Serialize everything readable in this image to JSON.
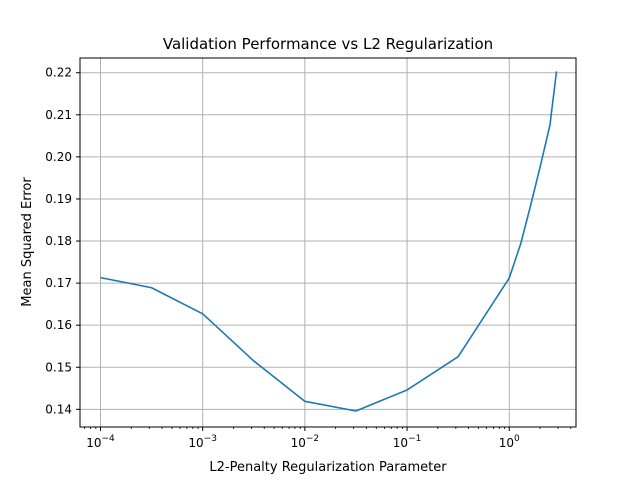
{
  "chart_data": {
    "type": "line",
    "title": "Validation Performance vs L2 Regularization",
    "xlabel": "L2-Penalty Regularization Parameter",
    "ylabel": "Mean Squared Error",
    "xscale": "log",
    "xlim": [
      6.3e-05,
      4.5
    ],
    "ylim": [
      0.1358,
      0.2235
    ],
    "grid": true,
    "x_ticks": [
      {
        "base": "10",
        "exp": "−4",
        "value": 0.0001
      },
      {
        "base": "10",
        "exp": "−3",
        "value": 0.001
      },
      {
        "base": "10",
        "exp": "−2",
        "value": 0.01
      },
      {
        "base": "10",
        "exp": "−1",
        "value": 0.1
      },
      {
        "base": "10",
        "exp": "0",
        "value": 1
      }
    ],
    "y_ticks": [
      "0.14",
      "0.15",
      "0.16",
      "0.17",
      "0.18",
      "0.19",
      "0.20",
      "0.21",
      "0.22"
    ],
    "series": [
      {
        "color": "#1f77b4",
        "x": [
          0.0001,
          0.000316,
          0.001,
          0.00316,
          0.01,
          0.0316,
          0.1,
          0.316,
          1.0,
          1.3,
          1.6,
          2.0,
          2.5,
          2.9
        ],
        "y": [
          0.1713,
          0.1689,
          0.1627,
          0.1515,
          0.1419,
          0.1396,
          0.1446,
          0.1525,
          0.1712,
          0.1795,
          0.188,
          0.1975,
          0.2075,
          0.2203
        ]
      }
    ]
  }
}
